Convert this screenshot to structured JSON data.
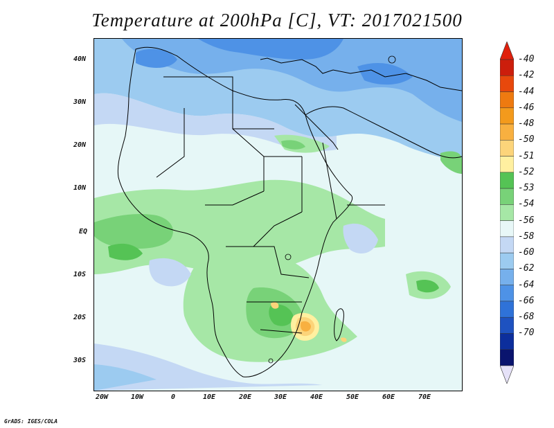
{
  "title": "Temperature at 200hPa [C], VT: 2017021500",
  "credit": "GrADS: IGES/COLA",
  "lat_ticks": [
    "40N",
    "30N",
    "20N",
    "10N",
    "EQ",
    "10S",
    "20S",
    "30S"
  ],
  "lon_ticks": [
    "20W",
    "10W",
    "0",
    "10E",
    "20E",
    "30E",
    "40E",
    "50E",
    "60E",
    "70E"
  ],
  "legend": {
    "labels": [
      "-40",
      "-42",
      "-44",
      "-46",
      "-48",
      "-50",
      "-51",
      "-52",
      "-53",
      "-54",
      "-56",
      "-58",
      "-60",
      "-62",
      "-64",
      "-66",
      "-68",
      "-70"
    ],
    "colors": [
      "#e8f7f7",
      "#a6e7a6",
      "#78d278",
      "#55c355",
      "#fff0a0",
      "#fcd47a",
      "#f8b040",
      "#f39a1c",
      "#ee7a10",
      "#e8480c",
      "#cc1e0c",
      "#c4d8f4",
      "#9ccbf0",
      "#76b0ec",
      "#4e92e6",
      "#2f72d8",
      "#1e52c0",
      "#0c2e9c",
      "#0a146e"
    ]
  },
  "colors": {
    "land_outline": "#000000",
    "frame": "#000000"
  }
}
